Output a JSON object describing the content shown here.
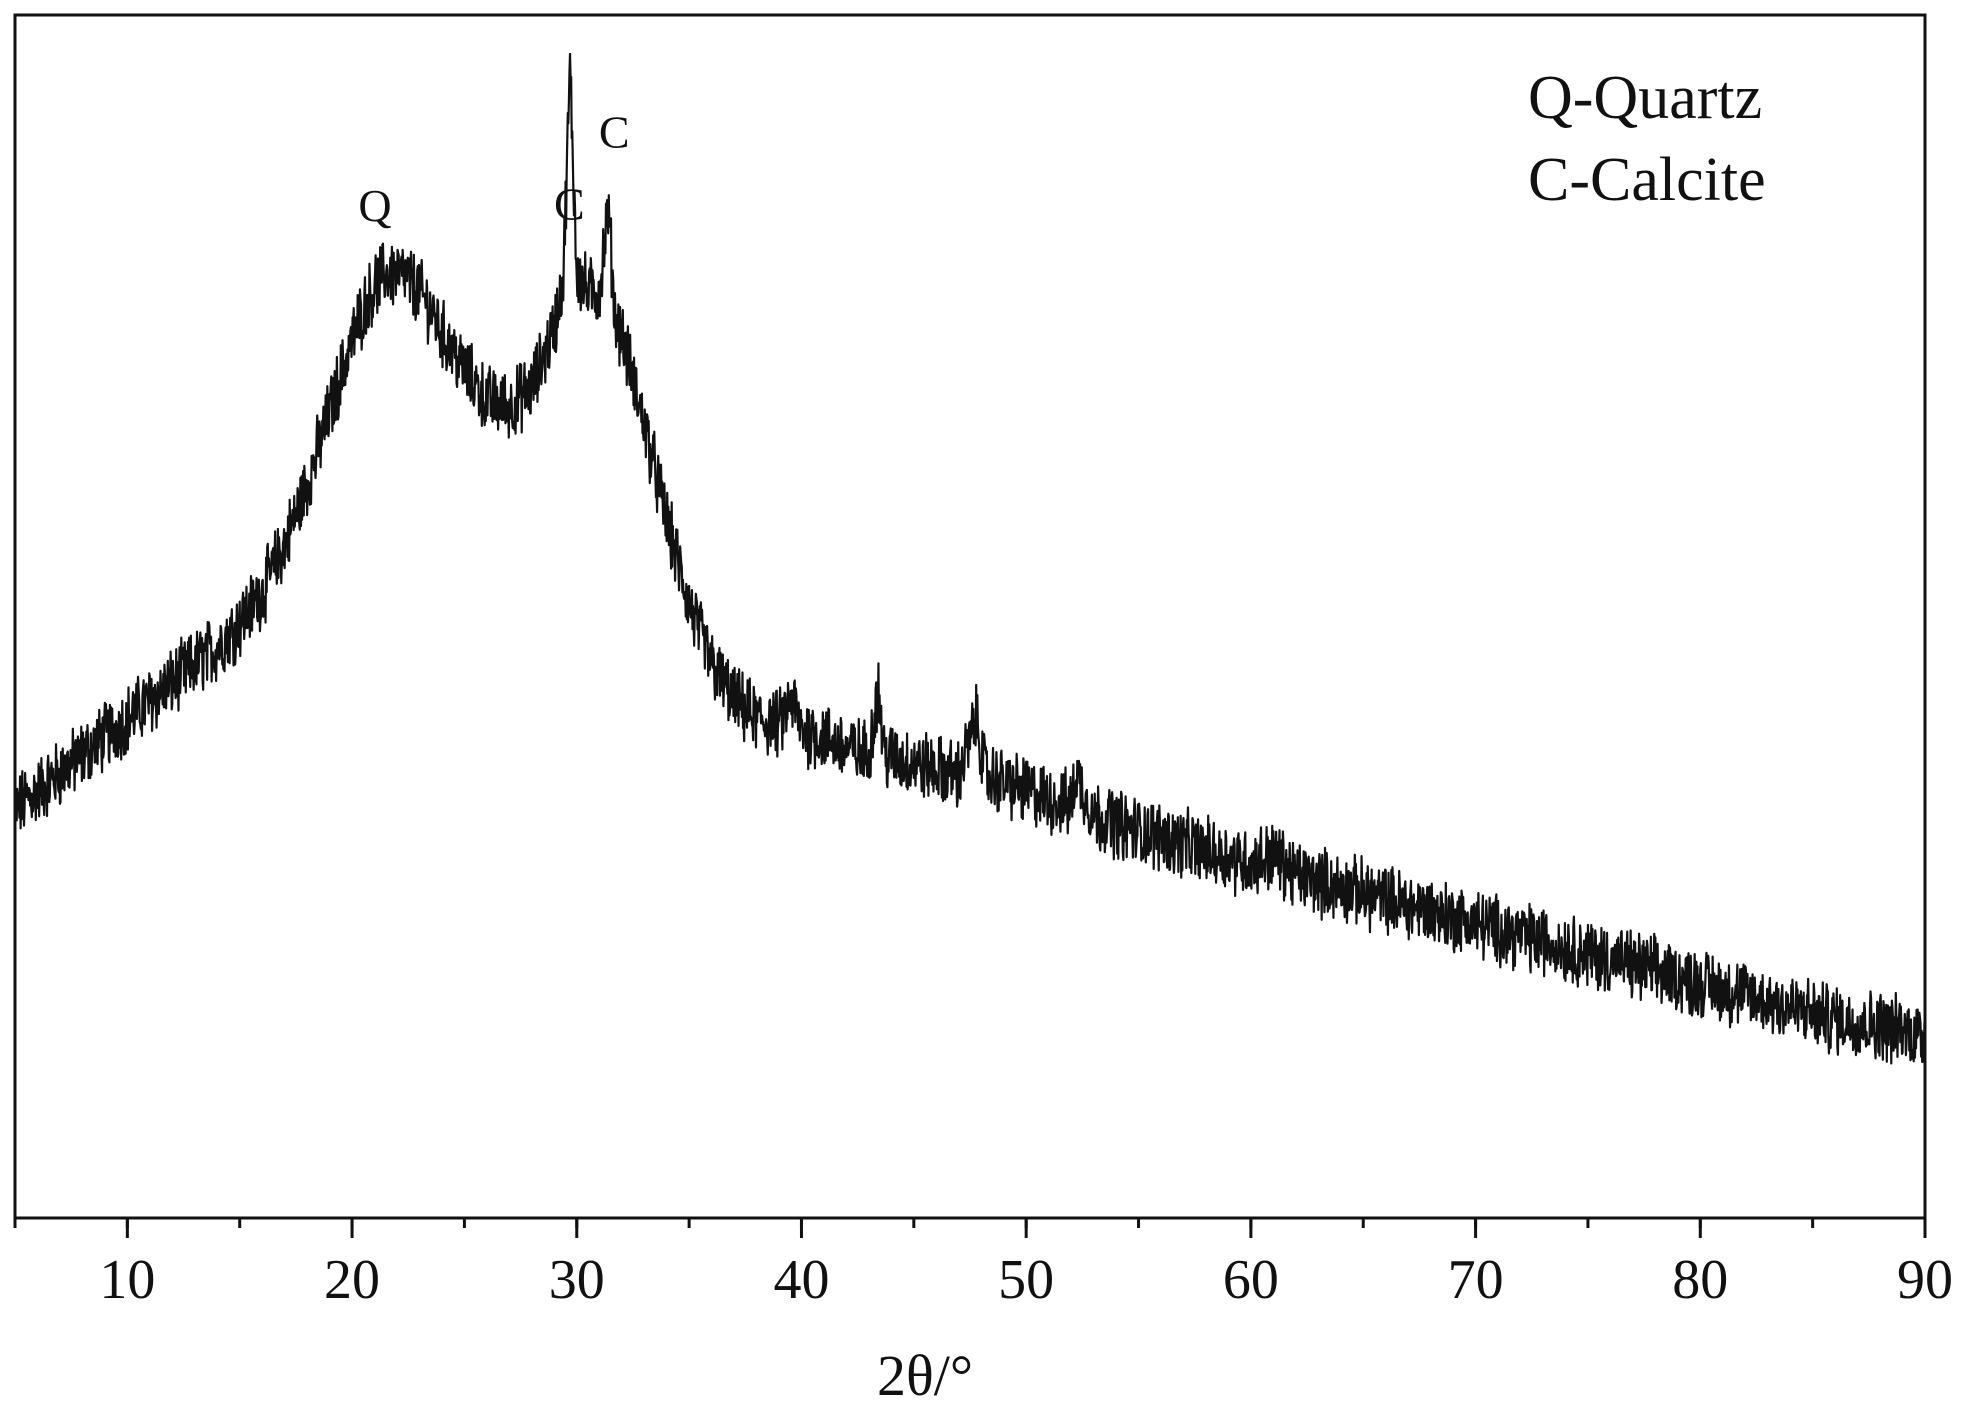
{
  "chart_data": {
    "type": "line",
    "title": "",
    "xlabel": "2θ/°",
    "ylabel": "",
    "xlim": [
      5,
      90
    ],
    "ylim": [
      0,
      1
    ],
    "x_ticks": [
      10,
      20,
      30,
      40,
      50,
      60,
      70,
      80,
      90
    ],
    "x_tick_labels": [
      "10",
      "20",
      "30",
      "40",
      "50",
      "60",
      "70",
      "80",
      "90"
    ],
    "minor_x_step": 5,
    "y_ticks_shown": false,
    "grid": false,
    "line_color": "#111111",
    "legend": {
      "placement": "top-right",
      "entries": [
        "Q-Quartz",
        "C-Calcite"
      ]
    },
    "peak_annotations": [
      {
        "label": "Q",
        "x": 21.2
      },
      {
        "label": "C",
        "x": 29.4
      },
      {
        "label": "C",
        "x": 31.4
      }
    ],
    "series": [
      {
        "noise_amplitude": 0.025,
        "x": [
          5,
          6,
          7,
          8,
          9,
          10,
          11,
          12,
          13,
          14,
          15,
          16,
          17,
          18,
          19,
          20,
          20.5,
          21,
          21.5,
          22,
          22.5,
          23,
          23.5,
          24,
          25,
          26,
          27,
          28,
          29,
          29.4,
          29.7,
          30,
          30.5,
          31,
          31.4,
          31.7,
          32,
          33,
          34,
          35,
          36,
          37,
          38,
          39,
          39.6,
          40,
          41,
          42,
          43,
          43.4,
          43.7,
          44,
          45,
          46,
          47,
          47.8,
          48.2,
          49,
          50,
          51,
          52,
          52.2,
          53,
          54,
          55,
          56,
          57,
          58,
          59,
          60,
          61,
          62,
          63,
          64,
          65,
          66,
          67,
          68,
          69,
          70,
          72,
          74,
          76,
          78,
          80,
          82,
          84,
          86,
          88,
          90
        ],
        "y": [
          0.34,
          0.355,
          0.37,
          0.385,
          0.4,
          0.415,
          0.43,
          0.445,
          0.46,
          0.475,
          0.495,
          0.52,
          0.56,
          0.61,
          0.67,
          0.73,
          0.755,
          0.775,
          0.785,
          0.785,
          0.78,
          0.77,
          0.755,
          0.735,
          0.705,
          0.68,
          0.675,
          0.69,
          0.74,
          0.78,
          0.955,
          0.785,
          0.77,
          0.77,
          0.84,
          0.75,
          0.735,
          0.66,
          0.58,
          0.51,
          0.46,
          0.43,
          0.415,
          0.41,
          0.43,
          0.405,
          0.4,
          0.39,
          0.385,
          0.44,
          0.385,
          0.383,
          0.378,
          0.373,
          0.368,
          0.415,
          0.368,
          0.362,
          0.355,
          0.348,
          0.343,
          0.37,
          0.335,
          0.328,
          0.322,
          0.317,
          0.311,
          0.305,
          0.3,
          0.295,
          0.302,
          0.285,
          0.28,
          0.275,
          0.27,
          0.265,
          0.26,
          0.255,
          0.25,
          0.245,
          0.235,
          0.225,
          0.215,
          0.205,
          0.195,
          0.185,
          0.175,
          0.165,
          0.16,
          0.152
        ]
      }
    ]
  }
}
